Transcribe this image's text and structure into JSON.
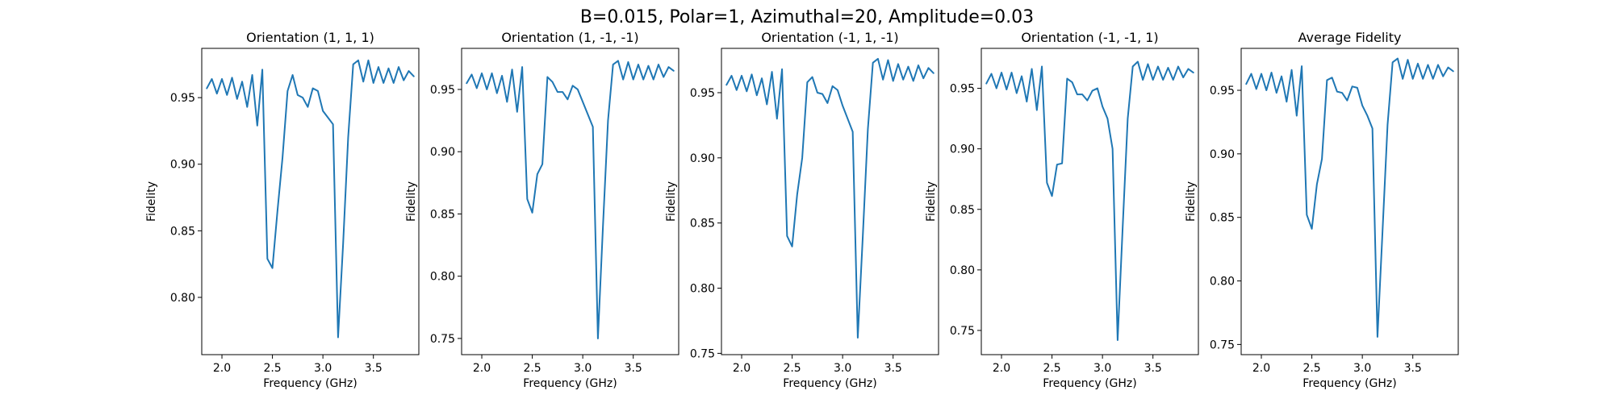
{
  "chart_data": {
    "suptitle": "B=0.015, Polar=1, Azimuthal=20, Amplitude=0.03",
    "panels": [
      {
        "type": "line",
        "title": "Orientation (1, 1, 1)",
        "xlabel": "Frequency (GHz)",
        "ylabel": "Fidelity",
        "xlim": [
          1.8,
          3.95
        ],
        "ylim": [
          0.757,
          0.987
        ],
        "xticks": [
          2.0,
          2.5,
          3.0,
          3.5
        ],
        "xtick_labels": [
          "2.0",
          "2.5",
          "3.0",
          "3.5"
        ],
        "yticks": [
          0.8,
          0.85,
          0.9,
          0.95
        ],
        "ytick_labels": [
          "0.80",
          "0.85",
          "0.90",
          "0.95"
        ],
        "series": [
          {
            "x": [
              1.85,
              1.9,
              1.95,
              2.0,
              2.05,
              2.1,
              2.15,
              2.2,
              2.25,
              2.3,
              2.35,
              2.4,
              2.45,
              2.5,
              2.55,
              2.6,
              2.65,
              2.7,
              2.75,
              2.8,
              2.85,
              2.9,
              2.95,
              3.0,
              3.05,
              3.1,
              3.15,
              3.2,
              3.25,
              3.3,
              3.35,
              3.4,
              3.45,
              3.5,
              3.55,
              3.6,
              3.65,
              3.7,
              3.75,
              3.8,
              3.85,
              3.9
            ],
            "y": [
              0.957,
              0.964,
              0.953,
              0.964,
              0.952,
              0.965,
              0.949,
              0.962,
              0.943,
              0.967,
              0.929,
              0.971,
              0.829,
              0.822,
              0.865,
              0.905,
              0.955,
              0.967,
              0.952,
              0.95,
              0.943,
              0.957,
              0.955,
              0.94,
              0.935,
              0.93,
              0.77,
              0.84,
              0.92,
              0.975,
              0.978,
              0.962,
              0.978,
              0.961,
              0.973,
              0.961,
              0.972,
              0.961,
              0.973,
              0.963,
              0.97,
              0.966
            ]
          }
        ]
      },
      {
        "type": "line",
        "title": "Orientation (1, -1, -1)",
        "xlabel": "Frequency (GHz)",
        "ylabel": "Fidelity",
        "xlim": [
          1.8,
          3.95
        ],
        "ylim": [
          0.737,
          0.983
        ],
        "xticks": [
          2.0,
          2.5,
          3.0,
          3.5
        ],
        "xtick_labels": [
          "2.0",
          "2.5",
          "3.0",
          "3.5"
        ],
        "yticks": [
          0.75,
          0.8,
          0.85,
          0.9,
          0.95
        ],
        "ytick_labels": [
          "0.75",
          "0.80",
          "0.85",
          "0.90",
          "0.95"
        ],
        "series": [
          {
            "x": [
              1.85,
              1.9,
              1.95,
              2.0,
              2.05,
              2.1,
              2.15,
              2.2,
              2.25,
              2.3,
              2.35,
              2.4,
              2.45,
              2.5,
              2.55,
              2.6,
              2.65,
              2.7,
              2.75,
              2.8,
              2.85,
              2.9,
              2.95,
              3.0,
              3.05,
              3.1,
              3.15,
              3.2,
              3.25,
              3.3,
              3.35,
              3.4,
              3.45,
              3.5,
              3.55,
              3.6,
              3.65,
              3.7,
              3.75,
              3.8,
              3.85,
              3.9
            ],
            "y": [
              0.955,
              0.962,
              0.951,
              0.963,
              0.95,
              0.963,
              0.947,
              0.961,
              0.94,
              0.966,
              0.932,
              0.968,
              0.862,
              0.851,
              0.882,
              0.89,
              0.96,
              0.956,
              0.948,
              0.948,
              0.942,
              0.953,
              0.95,
              0.94,
              0.93,
              0.92,
              0.75,
              0.84,
              0.925,
              0.97,
              0.973,
              0.958,
              0.972,
              0.958,
              0.97,
              0.958,
              0.969,
              0.958,
              0.97,
              0.96,
              0.968,
              0.965
            ]
          }
        ]
      },
      {
        "type": "line",
        "title": "Orientation (-1, 1, -1)",
        "xlabel": "Frequency (GHz)",
        "ylabel": "Fidelity",
        "xlim": [
          1.8,
          3.95
        ],
        "ylim": [
          0.749,
          0.984
        ],
        "xticks": [
          2.0,
          2.5,
          3.0,
          3.5
        ],
        "xtick_labels": [
          "2.0",
          "2.5",
          "3.0",
          "3.5"
        ],
        "yticks": [
          0.75,
          0.8,
          0.85,
          0.9,
          0.95
        ],
        "ytick_labels": [
          "0.75",
          "0.80",
          "0.85",
          "0.90",
          "0.95"
        ],
        "series": [
          {
            "x": [
              1.85,
              1.9,
              1.95,
              2.0,
              2.05,
              2.1,
              2.15,
              2.2,
              2.25,
              2.3,
              2.35,
              2.4,
              2.45,
              2.5,
              2.55,
              2.6,
              2.65,
              2.7,
              2.75,
              2.8,
              2.85,
              2.9,
              2.95,
              3.0,
              3.05,
              3.1,
              3.15,
              3.2,
              3.25,
              3.3,
              3.35,
              3.4,
              3.45,
              3.5,
              3.55,
              3.6,
              3.65,
              3.7,
              3.75,
              3.8,
              3.85,
              3.9
            ],
            "y": [
              0.956,
              0.963,
              0.952,
              0.963,
              0.951,
              0.964,
              0.948,
              0.961,
              0.941,
              0.966,
              0.93,
              0.968,
              0.84,
              0.832,
              0.872,
              0.9,
              0.958,
              0.962,
              0.95,
              0.949,
              0.942,
              0.955,
              0.952,
              0.94,
              0.93,
              0.92,
              0.762,
              0.84,
              0.922,
              0.973,
              0.976,
              0.96,
              0.975,
              0.959,
              0.972,
              0.96,
              0.97,
              0.959,
              0.971,
              0.961,
              0.969,
              0.965
            ]
          }
        ]
      },
      {
        "type": "line",
        "title": "Orientation (-1, -1, 1)",
        "xlabel": "Frequency (GHz)",
        "ylabel": "Fidelity",
        "xlim": [
          1.8,
          3.95
        ],
        "ylim": [
          0.73,
          0.983
        ],
        "xticks": [
          2.0,
          2.5,
          3.0,
          3.5
        ],
        "xtick_labels": [
          "2.0",
          "2.5",
          "3.0",
          "3.5"
        ],
        "yticks": [
          0.75,
          0.8,
          0.85,
          0.9,
          0.95
        ],
        "ytick_labels": [
          "0.75",
          "0.80",
          "0.85",
          "0.90",
          "0.95"
        ],
        "series": [
          {
            "x": [
              1.85,
              1.9,
              1.95,
              2.0,
              2.05,
              2.1,
              2.15,
              2.2,
              2.25,
              2.3,
              2.35,
              2.4,
              2.45,
              2.5,
              2.55,
              2.6,
              2.65,
              2.7,
              2.75,
              2.8,
              2.85,
              2.9,
              2.95,
              3.0,
              3.05,
              3.1,
              3.15,
              3.2,
              3.25,
              3.3,
              3.35,
              3.4,
              3.45,
              3.5,
              3.55,
              3.6,
              3.65,
              3.7,
              3.75,
              3.8,
              3.85,
              3.9
            ],
            "y": [
              0.954,
              0.962,
              0.95,
              0.963,
              0.949,
              0.963,
              0.946,
              0.96,
              0.939,
              0.966,
              0.932,
              0.968,
              0.872,
              0.861,
              0.887,
              0.888,
              0.958,
              0.955,
              0.945,
              0.945,
              0.94,
              0.948,
              0.95,
              0.935,
              0.925,
              0.9,
              0.742,
              0.835,
              0.925,
              0.968,
              0.972,
              0.957,
              0.97,
              0.957,
              0.968,
              0.957,
              0.967,
              0.957,
              0.968,
              0.959,
              0.966,
              0.963
            ]
          }
        ]
      },
      {
        "type": "line",
        "title": "Average Fidelity",
        "xlabel": "Frequency (GHz)",
        "ylabel": "Fidelity",
        "xlim": [
          1.8,
          3.95
        ],
        "ylim": [
          0.742,
          0.983
        ],
        "xticks": [
          2.0,
          2.5,
          3.0,
          3.5
        ],
        "xtick_labels": [
          "2.0",
          "2.5",
          "3.0",
          "3.5"
        ],
        "yticks": [
          0.75,
          0.8,
          0.85,
          0.9,
          0.95
        ],
        "ytick_labels": [
          "0.75",
          "0.80",
          "0.85",
          "0.90",
          "0.95"
        ],
        "series": [
          {
            "x": [
              1.85,
              1.9,
              1.95,
              2.0,
              2.05,
              2.1,
              2.15,
              2.2,
              2.25,
              2.3,
              2.35,
              2.4,
              2.45,
              2.5,
              2.55,
              2.6,
              2.65,
              2.7,
              2.75,
              2.8,
              2.85,
              2.9,
              2.95,
              3.0,
              3.05,
              3.1,
              3.15,
              3.2,
              3.25,
              3.3,
              3.35,
              3.4,
              3.45,
              3.5,
              3.55,
              3.6,
              3.65,
              3.7,
              3.75,
              3.8,
              3.85,
              3.9
            ],
            "y": [
              0.955,
              0.963,
              0.951,
              0.963,
              0.95,
              0.964,
              0.948,
              0.961,
              0.941,
              0.966,
              0.93,
              0.969,
              0.852,
              0.841,
              0.876,
              0.896,
              0.958,
              0.96,
              0.949,
              0.948,
              0.942,
              0.953,
              0.952,
              0.938,
              0.93,
              0.92,
              0.756,
              0.839,
              0.923,
              0.972,
              0.975,
              0.959,
              0.974,
              0.959,
              0.971,
              0.959,
              0.97,
              0.959,
              0.97,
              0.961,
              0.968,
              0.965
            ]
          }
        ]
      }
    ]
  }
}
